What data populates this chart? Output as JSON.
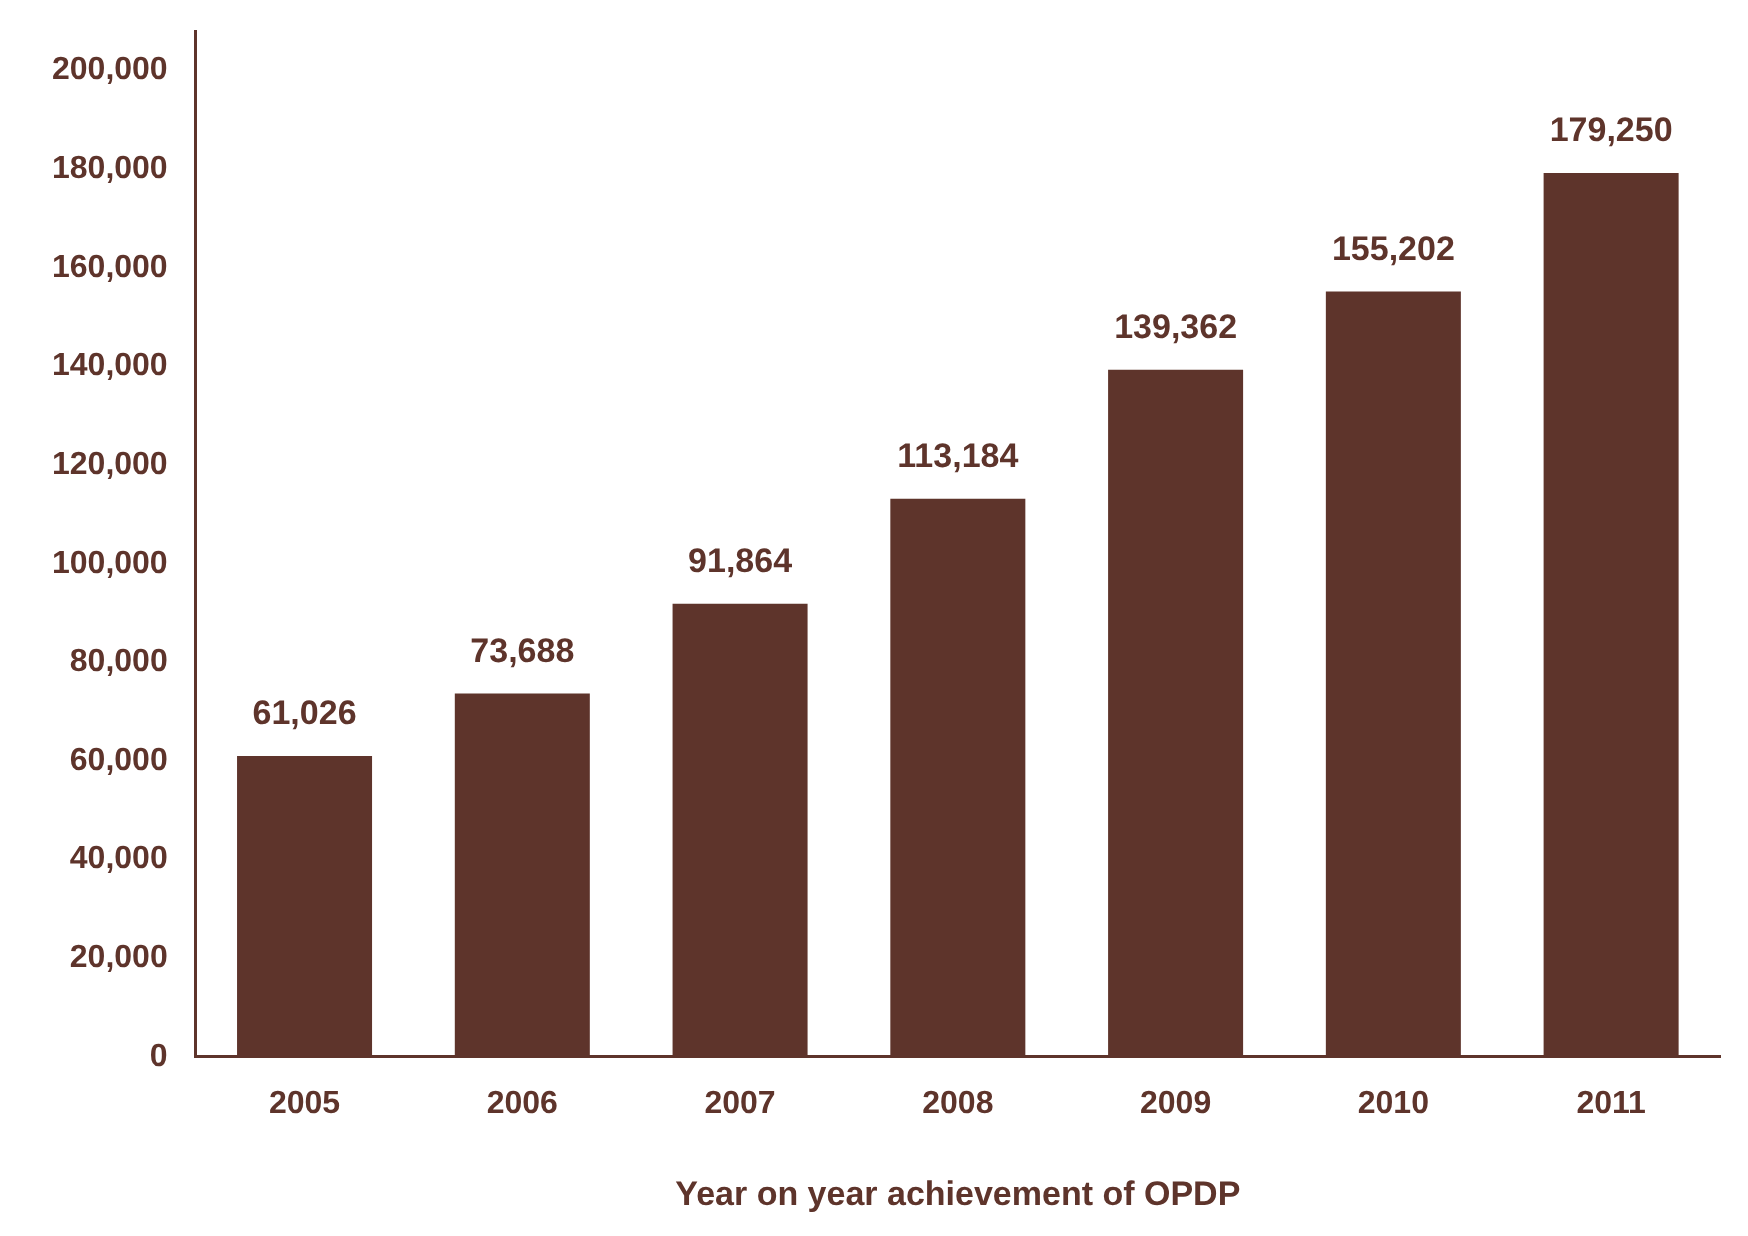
{
  "chart_data": {
    "type": "bar",
    "xlabel": "Year on year achievement of OPDP",
    "categories": [
      "2005",
      "2006",
      "2007",
      "2008",
      "2009",
      "2010",
      "2011"
    ],
    "values": [
      61026,
      73688,
      91864,
      113184,
      139362,
      155202,
      179250
    ],
    "value_labels": [
      "61,026",
      "73,688",
      "91,864",
      "113,184",
      "139,362",
      "155,202",
      "179,250"
    ],
    "color": "#5e342b",
    "ylim": [
      0,
      208000
    ],
    "yticks": [
      0,
      {
        "value": 20000,
        "label": "20,000"
      },
      {
        "value": 40000,
        "label": "40,000"
      },
      {
        "value": 60000,
        "label": "60,000"
      },
      {
        "value": 80000,
        "label": "80,000"
      },
      {
        "value": 100000,
        "label": "100,000"
      },
      {
        "value": 120000,
        "label": "120,000"
      },
      {
        "value": 140000,
        "label": "140,000"
      },
      {
        "value": 160000,
        "label": "160,000"
      },
      {
        "value": 180000,
        "label": "180,000"
      },
      {
        "value": 200000,
        "label": "200,000"
      }
    ],
    "grid": false,
    "legend": false
  }
}
